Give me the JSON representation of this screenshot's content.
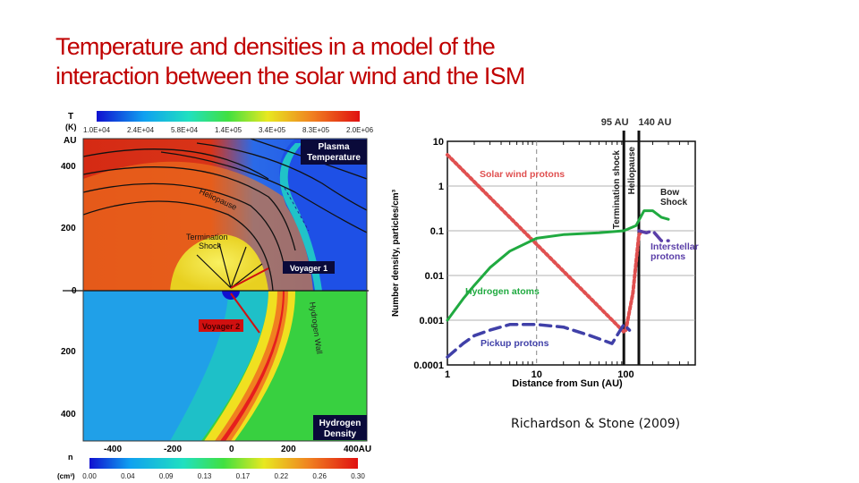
{
  "slide": {
    "title_line1": "Temperature and densities in a model of the",
    "title_line2": "interaction between the solar wind and the ISM",
    "citation": "Richardson & Stone (2009)"
  },
  "left_figure": {
    "temp_colorbar": {
      "label_T": "T",
      "label_K": "(K)",
      "ticks": [
        "1.0E+04",
        "2.4E+04",
        "5.8E+04",
        "1.4E+05",
        "3.4E+05",
        "8.3E+05",
        "2.0E+06"
      ]
    },
    "au_label": "AU",
    "y_ticks_top": [
      "400",
      "200"
    ],
    "y_tick_zero": "0",
    "y_ticks_bottom": [
      "200",
      "400"
    ],
    "x_ticks": [
      "-400",
      "-200",
      "0",
      "200"
    ],
    "x_tick_last": "400AU",
    "panel_labels": {
      "plasma_line1": "Plasma",
      "plasma_line2": "Temperature",
      "hydrogen_line1": "Hydrogen",
      "hydrogen_line2": "Density"
    },
    "annotations": {
      "heliopause": "Heliopause",
      "termination_line1": "Termination",
      "termination_line2": "Shock",
      "voyager1": "Voyager 1",
      "voyager2": "Voyager 2",
      "hydrogen_wall": "Hydrogen Wall"
    },
    "density_colorbar": {
      "label_n": "n",
      "label_unit": "(cm³)",
      "ticks": [
        "0.00",
        "0.04",
        "0.09",
        "0.13",
        "0.17",
        "0.22",
        "0.26",
        "0.30"
      ]
    },
    "colors": {
      "hot": "#d52a14",
      "warm": "#f07a1e",
      "inner": "#f0e020",
      "cold": "#1e50e6",
      "wall": "#e61e1e",
      "ism_density": "#38d040"
    }
  },
  "chart_data": {
    "type": "line",
    "xlabel": "Distance from Sun (AU)",
    "ylabel": "Number density, particles/cm³",
    "xscale": "log",
    "yscale": "log",
    "xlim": [
      1,
      600
    ],
    "ylim": [
      0.0001,
      10
    ],
    "x_tick_labels": [
      "1",
      "10",
      "100"
    ],
    "y_tick_labels": [
      "10",
      "1",
      "0.1",
      "0.01",
      "0.001",
      "0.0001"
    ],
    "grid": "horizontal",
    "vlines": [
      {
        "x": 95,
        "label": "95 AU",
        "rotated_label": "Termination shock"
      },
      {
        "x": 140,
        "label": "140 AU",
        "rotated_label": "Heliopause"
      }
    ],
    "dashed_vline_x": 10,
    "series": [
      {
        "name": "Solar wind protons",
        "color": "#e05050",
        "style": "dotted",
        "x": [
          1,
          10,
          95,
          100,
          120,
          140,
          145
        ],
        "y": [
          5,
          0.05,
          0.00055,
          0.0006,
          0.004,
          0.08,
          0.09
        ]
      },
      {
        "name": "Hydrogen atoms",
        "color": "#20aa40",
        "style": "solid",
        "x": [
          1,
          1.5,
          2,
          3,
          5,
          10,
          20,
          50,
          95,
          130,
          160,
          200,
          250,
          300
        ],
        "y": [
          0.001,
          0.003,
          0.006,
          0.015,
          0.035,
          0.068,
          0.082,
          0.09,
          0.1,
          0.13,
          0.28,
          0.28,
          0.2,
          0.18
        ]
      },
      {
        "name": "Interstellar protons",
        "color": "#5a3ea8",
        "style": "dashed",
        "x": [
          140,
          170,
          200,
          250,
          300
        ],
        "y": [
          0.1,
          0.09,
          0.1,
          0.06,
          0.06
        ]
      },
      {
        "name": "Pickup protons",
        "color": "#4040a8",
        "style": "dashed",
        "x": [
          1,
          1.5,
          2,
          3,
          5,
          10,
          20,
          40,
          70,
          95,
          110
        ],
        "y": [
          0.00015,
          0.0003,
          0.00045,
          0.0006,
          0.0008,
          0.0008,
          0.0007,
          0.00045,
          0.0003,
          0.0008,
          0.0006
        ]
      }
    ],
    "annotations": [
      {
        "text": "Bow",
        "x": 230,
        "y": 0.5
      },
      {
        "text": "Shock",
        "x": 230,
        "y": 0.3
      }
    ]
  }
}
